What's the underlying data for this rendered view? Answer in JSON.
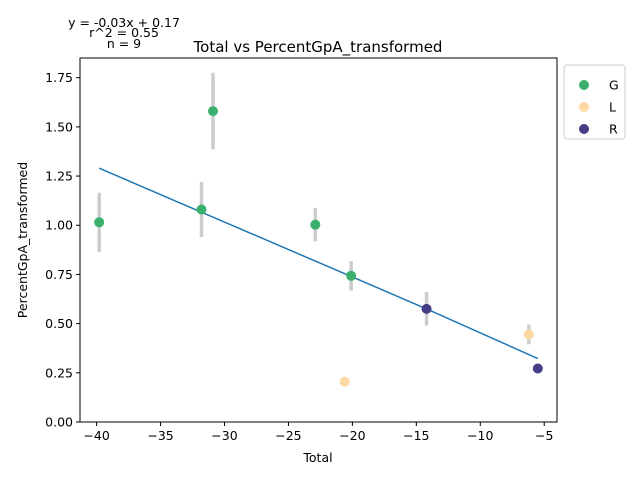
{
  "chart_data": {
    "type": "scatter",
    "title": "Total vs PercentGpA_transformed",
    "xlabel": "Total",
    "ylabel": "PercentGpA_transformed",
    "xlim": [
      -41.3,
      -4.0
    ],
    "ylim": [
      0.0,
      1.85
    ],
    "xticks": [
      -40,
      -35,
      -30,
      -25,
      -20,
      -15,
      -10,
      -5
    ],
    "yticks": [
      0.0,
      0.25,
      0.5,
      0.75,
      1.0,
      1.25,
      1.5,
      1.75
    ],
    "xtick_labels": [
      "−40",
      "−35",
      "−30",
      "−25",
      "−20",
      "−15",
      "−10",
      "−5"
    ],
    "ytick_labels": [
      "0.00",
      "0.25",
      "0.50",
      "0.75",
      "1.00",
      "1.25",
      "1.50",
      "1.75"
    ],
    "grid": false,
    "legend_placement": "outside-top-right",
    "annotations": [
      "y = -0.03x + 0.17",
      "r^2 = 0.55",
      "n = 9"
    ],
    "series": [
      {
        "name": "G",
        "color": "#3bb06d",
        "points": [
          {
            "x": -39.8,
            "y": 1.015,
            "err": 0.15
          },
          {
            "x": -31.8,
            "y": 1.08,
            "err": 0.14
          },
          {
            "x": -30.9,
            "y": 1.58,
            "err": 0.195
          },
          {
            "x": -22.9,
            "y": 1.003,
            "err": 0.085
          },
          {
            "x": -20.1,
            "y": 0.743,
            "err": 0.075
          }
        ]
      },
      {
        "name": "L",
        "color": "#fdd9a3",
        "points": [
          {
            "x": -20.6,
            "y": 0.205,
            "err": 0.02
          },
          {
            "x": -6.2,
            "y": 0.445,
            "err": 0.05
          }
        ]
      },
      {
        "name": "R",
        "color": "#433e85",
        "points": [
          {
            "x": -14.2,
            "y": 0.575,
            "err": 0.085
          },
          {
            "x": -5.5,
            "y": 0.272,
            "err": 0.025
          }
        ]
      }
    ],
    "fit_line": {
      "color": "#1f77b4",
      "points": [
        [
          -39.8,
          1.29
        ],
        [
          -14.2,
          0.575
        ],
        [
          -5.5,
          0.322
        ]
      ]
    },
    "errorbar_color": "#cccccc"
  }
}
